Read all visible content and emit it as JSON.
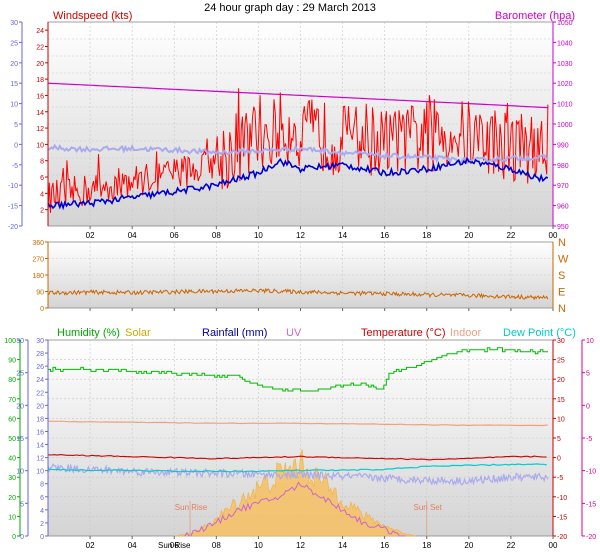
{
  "title": "24 hour graph day : 29 March 2013",
  "colors": {
    "wind": "#ff0000",
    "windBlue": "#0000cc",
    "windLilac": "#aaaaee",
    "baro": "#cc00cc",
    "dir": "#cc6600",
    "hum": "#00bb00",
    "solar": "#ccaa00",
    "rain": "#000099",
    "uv": "#cc66cc",
    "temp": "#cc0000",
    "indoor": "#f0a080",
    "dew": "#00cccc",
    "hum_axis": "#00aa00",
    "rain_axis": "#6666dd",
    "pink_axis": "#dd0088",
    "blue_axis": "#6666dd"
  },
  "chart_data": [
    {
      "type": "line",
      "id": "wind",
      "labels": {
        "windspeed": "Windspeed (kts)",
        "barometer": "Barometer (hpa)"
      },
      "xticks": [
        "02",
        "04",
        "06",
        "08",
        "10",
        "12",
        "14",
        "16",
        "18",
        "20",
        "22",
        "00"
      ],
      "y_left": {
        "ticks": [
          2,
          4,
          6,
          8,
          10,
          12,
          14,
          16,
          18,
          20,
          22,
          24
        ],
        "range": [
          0,
          25
        ]
      },
      "y_outer": {
        "ticks": [
          -20,
          -15,
          -10,
          -5,
          0,
          5,
          10,
          15,
          20,
          25,
          30
        ],
        "range": [
          -20,
          30
        ]
      },
      "y_right": {
        "ticks": [
          950,
          960,
          970,
          980,
          990,
          1000,
          1010,
          1020,
          1030,
          1040,
          1050
        ],
        "range": [
          950,
          1050
        ]
      },
      "series": [
        {
          "key": "baro",
          "x": [
            0,
            4,
            8,
            12,
            16,
            20,
            23.8
          ],
          "y": [
            1020,
            1018,
            1016,
            1014,
            1012,
            1010,
            1008
          ]
        },
        {
          "key": "windBlue",
          "x": [
            0,
            2,
            4,
            6,
            8,
            10,
            11,
            12,
            14,
            16,
            18,
            20,
            22,
            23.8
          ],
          "y": [
            2.5,
            2.8,
            3.5,
            4.2,
            5,
            6.5,
            8,
            7,
            7.5,
            6.5,
            7,
            8,
            7,
            5.5
          ]
        },
        {
          "key": "windLilac",
          "x": [
            0,
            2,
            4,
            6,
            8,
            10,
            12,
            14,
            16,
            18,
            20,
            22,
            23.8
          ],
          "y": [
            9.6,
            9.4,
            9.5,
            9.3,
            9.0,
            9.2,
            9.5,
            9.0,
            8.6,
            8.4,
            8.0,
            8.3,
            8.4
          ]
        },
        {
          "key": "wind",
          "x": [
            0,
            1,
            2,
            3,
            4,
            5,
            6,
            7,
            8,
            9,
            10,
            11,
            12,
            13,
            14,
            15,
            16,
            17,
            18,
            19,
            20,
            21,
            22,
            23,
            23.8
          ],
          "y": [
            3.5,
            4,
            4.5,
            5,
            5.5,
            6,
            6.5,
            7,
            8,
            9.5,
            11,
            12,
            11.5,
            11,
            10.5,
            11,
            10,
            10.5,
            11,
            11.5,
            11,
            10.5,
            10,
            9.5,
            9
          ]
        }
      ]
    },
    {
      "type": "line",
      "id": "direction",
      "xticks": [],
      "y_left": {
        "ticks": [
          0,
          90,
          180,
          270,
          360
        ],
        "range": [
          0,
          360
        ]
      },
      "y_right_labels": [
        "N",
        "W",
        "S",
        "E",
        "N"
      ],
      "series": [
        {
          "key": "dir",
          "x": [
            0,
            2,
            4,
            6,
            8,
            10,
            12,
            14,
            16,
            18,
            20,
            22,
            23.8
          ],
          "y": [
            82,
            86,
            84,
            88,
            92,
            95,
            88,
            82,
            78,
            72,
            68,
            62,
            55
          ]
        }
      ]
    },
    {
      "type": "line",
      "id": "multi",
      "legend": [
        "Humidity (%)",
        "Solar",
        "Rainfall (mm)",
        "UV",
        "Temperature (°C)",
        "Indoor",
        "Dew Point (°C)"
      ],
      "xticks": [
        "02",
        "04",
        "06",
        "08",
        "10",
        "12",
        "14",
        "16",
        "18",
        "20",
        "22",
        "00"
      ],
      "sun_labels": {
        "sunrise_tick": "Sun Rise",
        "sunrise": "Sun Rise",
        "sunset": "Sun Set"
      },
      "y_hum": {
        "ticks": [
          0,
          10,
          20,
          30,
          40,
          50,
          60,
          70,
          80,
          90,
          100
        ],
        "range": [
          0,
          100
        ]
      },
      "y_small": {
        "ticks": [
          0,
          2,
          4,
          6,
          8,
          10,
          12,
          14,
          16,
          18,
          20,
          22,
          24,
          26,
          28,
          30
        ],
        "range": [
          0,
          30
        ]
      },
      "y_blue_outer": {
        "ticks": [
          0,
          5,
          10,
          15,
          20,
          25,
          30
        ],
        "range": [
          0,
          30
        ]
      },
      "y_temp": {
        "ticks": [
          -20,
          -15,
          -10,
          -5,
          0,
          5,
          10,
          15,
          20,
          25,
          30
        ],
        "range": [
          -20,
          30
        ]
      },
      "y_uv": {
        "ticks": [
          -20,
          -15,
          -10,
          -5,
          0,
          5,
          10
        ],
        "range": [
          -20,
          10
        ]
      },
      "series": [
        {
          "key": "hum",
          "x": [
            0,
            2,
            4,
            6,
            8,
            9,
            10,
            11,
            12,
            13,
            14,
            15,
            15.8,
            16.2,
            17,
            18,
            19,
            20,
            21,
            22,
            23,
            23.8
          ],
          "y": [
            85,
            85,
            84,
            83,
            82,
            81,
            77,
            75,
            74,
            75,
            77,
            78,
            74,
            83,
            85,
            89,
            93,
            95,
            95,
            95,
            94,
            94
          ]
        },
        {
          "key": "indoor",
          "x": [
            0,
            4,
            8,
            12,
            16,
            20,
            23.8
          ],
          "y": [
            58.5,
            58,
            57.5,
            57.5,
            57,
            56.5,
            56.5
          ]
        },
        {
          "key": "temp",
          "x": [
            0,
            2,
            4,
            6,
            8,
            10,
            12,
            14,
            16,
            18,
            20,
            22,
            23.8
          ],
          "y": [
            41.5,
            41,
            40.5,
            40,
            39.5,
            40,
            40.5,
            40,
            39.5,
            39,
            39.5,
            40.5,
            40.5
          ]
        },
        {
          "key": "dew",
          "x": [
            0,
            2,
            4,
            6,
            8,
            10,
            12,
            14,
            16,
            18,
            20,
            22,
            23.8
          ],
          "y": [
            34,
            33.5,
            33.5,
            33,
            33,
            33,
            33.5,
            33.5,
            34,
            35.5,
            36,
            36.5,
            36.5
          ]
        },
        {
          "key": "blue_lilac",
          "x": [
            0,
            2,
            4,
            6,
            8,
            10,
            12,
            14,
            16,
            18,
            20,
            22,
            23.8
          ],
          "y": [
            35,
            34,
            33,
            32.5,
            32,
            31.5,
            31,
            30.5,
            29.5,
            28.5,
            28,
            30,
            30
          ]
        },
        {
          "key": "solar",
          "x": [
            6,
            7,
            8,
            9,
            10,
            11,
            12,
            13,
            14,
            15,
            16,
            17,
            17.5
          ],
          "y": [
            0,
            0.5,
            2.5,
            5,
            7,
            9,
            10.5,
            8,
            5.5,
            3,
            1.5,
            0.3,
            0
          ]
        },
        {
          "key": "uv",
          "x": [
            6.5,
            8,
            9,
            10,
            11,
            12,
            13,
            14,
            15,
            16,
            17
          ],
          "y": [
            0,
            2,
            4,
            5,
            6,
            8,
            6,
            4,
            2,
            1,
            0
          ]
        }
      ]
    }
  ]
}
